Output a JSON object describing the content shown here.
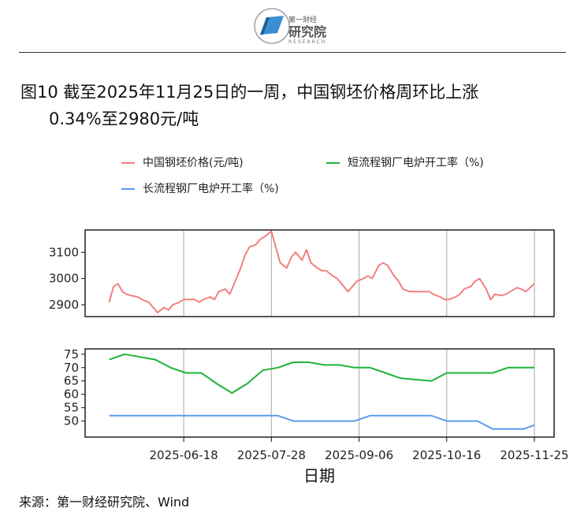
{
  "header": {
    "logo_mark": "第一财经",
    "logo_name": "研究院",
    "logo_sub": "RESEARCH"
  },
  "title": {
    "line1": "图10  截至2025年11月25日的一周，中国钢坯价格周环比上涨",
    "line2": "0.34%至2980元/吨"
  },
  "source": "来源：第一财经研究院、Wind",
  "colors": {
    "billet": "#F08080",
    "short_process": "#1DB33A",
    "long_process": "#5B9BF0"
  },
  "chart_data": {
    "type": "line",
    "xlabel": "日期",
    "x_ticks": [
      "2025-06-18",
      "2025-07-28",
      "2025-09-06",
      "2025-10-16",
      "2025-11-25"
    ],
    "x_range": [
      "2025-05-04",
      "2025-12-04"
    ],
    "legend": [
      {
        "key": "billet",
        "label": "中国钢坯价格(元/吨)"
      },
      {
        "key": "short_process",
        "label": "短流程钢厂电炉开工率（%)"
      },
      {
        "key": "long_process",
        "label": "长流程钢厂电炉开工率（%)"
      }
    ],
    "panels": [
      {
        "name": "price",
        "ylim": [
          2855,
          3185
        ],
        "y_ticks": [
          2900,
          3000,
          3100
        ],
        "series": [
          {
            "key": "billet",
            "name": "中国钢坯价格(元/吨)",
            "x": [
              "2025-05-15",
              "2025-05-17",
              "2025-05-19",
              "2025-05-21",
              "2025-05-23",
              "2025-05-25",
              "2025-05-28",
              "2025-05-30",
              "2025-06-02",
              "2025-06-04",
              "2025-06-06",
              "2025-06-09",
              "2025-06-11",
              "2025-06-13",
              "2025-06-16",
              "2025-06-18",
              "2025-06-20",
              "2025-06-23",
              "2025-06-25",
              "2025-06-27",
              "2025-06-30",
              "2025-07-02",
              "2025-07-04",
              "2025-07-07",
              "2025-07-09",
              "2025-07-11",
              "2025-07-14",
              "2025-07-16",
              "2025-07-18",
              "2025-07-21",
              "2025-07-23",
              "2025-07-25",
              "2025-07-28",
              "2025-07-30",
              "2025-08-01",
              "2025-08-04",
              "2025-08-06",
              "2025-08-08",
              "2025-08-11",
              "2025-08-13",
              "2025-08-15",
              "2025-08-18",
              "2025-08-20",
              "2025-08-22",
              "2025-08-25",
              "2025-08-27",
              "2025-08-29",
              "2025-09-01",
              "2025-09-03",
              "2025-09-05",
              "2025-09-08",
              "2025-09-10",
              "2025-09-12",
              "2025-09-15",
              "2025-09-17",
              "2025-09-19",
              "2025-09-22",
              "2025-09-24",
              "2025-09-26",
              "2025-09-29",
              "2025-10-01",
              "2025-10-08",
              "2025-10-10",
              "2025-10-13",
              "2025-10-15",
              "2025-10-17",
              "2025-10-20",
              "2025-10-22",
              "2025-10-24",
              "2025-10-27",
              "2025-10-29",
              "2025-10-31",
              "2025-11-03",
              "2025-11-05",
              "2025-11-07",
              "2025-11-10",
              "2025-11-12",
              "2025-11-14",
              "2025-11-17",
              "2025-11-19",
              "2025-11-21",
              "2025-11-25"
            ],
            "values": [
              2910,
              2970,
              2980,
              2950,
              2940,
              2935,
              2930,
              2920,
              2910,
              2890,
              2870,
              2890,
              2880,
              2900,
              2910,
              2920,
              2920,
              2920,
              2910,
              2920,
              2930,
              2920,
              2950,
              2960,
              2940,
              2980,
              3040,
              3090,
              3120,
              3130,
              3150,
              3160,
              3180,
              3120,
              3060,
              3040,
              3080,
              3100,
              3070,
              3110,
              3060,
              3040,
              3030,
              3030,
              3010,
              3000,
              2980,
              2950,
              2970,
              2990,
              3000,
              3010,
              3000,
              3050,
              3060,
              3050,
              3010,
              2990,
              2960,
              2950,
              2950,
              2950,
              2940,
              2930,
              2920,
              2920,
              2930,
              2940,
              2960,
              2970,
              2990,
              3000,
              2960,
              2920,
              2940,
              2935,
              2940,
              2950,
              2965,
              2960,
              2950,
              2980
            ]
          }
        ]
      },
      {
        "name": "utilization",
        "ylim": [
          44,
          77
        ],
        "y_ticks": [
          50,
          55,
          60,
          65,
          70,
          75
        ],
        "series": [
          {
            "key": "short_process",
            "name": "短流程钢厂电炉开工率（%)",
            "x": [
              "2025-05-15",
              "2025-05-22",
              "2025-05-29",
              "2025-06-05",
              "2025-06-12",
              "2025-06-19",
              "2025-06-26",
              "2025-07-03",
              "2025-07-10",
              "2025-07-17",
              "2025-07-24",
              "2025-07-31",
              "2025-08-07",
              "2025-08-14",
              "2025-08-21",
              "2025-08-28",
              "2025-09-04",
              "2025-09-11",
              "2025-09-18",
              "2025-09-25",
              "2025-10-02",
              "2025-10-09",
              "2025-10-16",
              "2025-10-23",
              "2025-10-30",
              "2025-11-06",
              "2025-11-13",
              "2025-11-20",
              "2025-11-25"
            ],
            "values": [
              73,
              75,
              74,
              73,
              70,
              68,
              68,
              64,
              60.5,
              64,
              69,
              70,
              72,
              72,
              71,
              71,
              70,
              70,
              68,
              66,
              65.5,
              65,
              68,
              68,
              68,
              68,
              70,
              70,
              70
            ]
          },
          {
            "key": "long_process",
            "name": "长流程钢厂电炉开工率（%)",
            "x": [
              "2025-05-15",
              "2025-05-22",
              "2025-05-29",
              "2025-06-05",
              "2025-06-12",
              "2025-06-19",
              "2025-06-26",
              "2025-07-03",
              "2025-07-10",
              "2025-07-17",
              "2025-07-24",
              "2025-07-31",
              "2025-08-07",
              "2025-08-14",
              "2025-08-21",
              "2025-08-28",
              "2025-09-04",
              "2025-09-11",
              "2025-09-18",
              "2025-09-25",
              "2025-10-02",
              "2025-10-09",
              "2025-10-16",
              "2025-10-23",
              "2025-10-30",
              "2025-11-06",
              "2025-11-13",
              "2025-11-20",
              "2025-11-25"
            ],
            "values": [
              52,
              52,
              52,
              52,
              52,
              52,
              52,
              52,
              52,
              52,
              52,
              52,
              50,
              50,
              50,
              50,
              50,
              52,
              52,
              52,
              52,
              52,
              50,
              50,
              50,
              47,
              47,
              47,
              48.5
            ]
          }
        ]
      }
    ]
  }
}
